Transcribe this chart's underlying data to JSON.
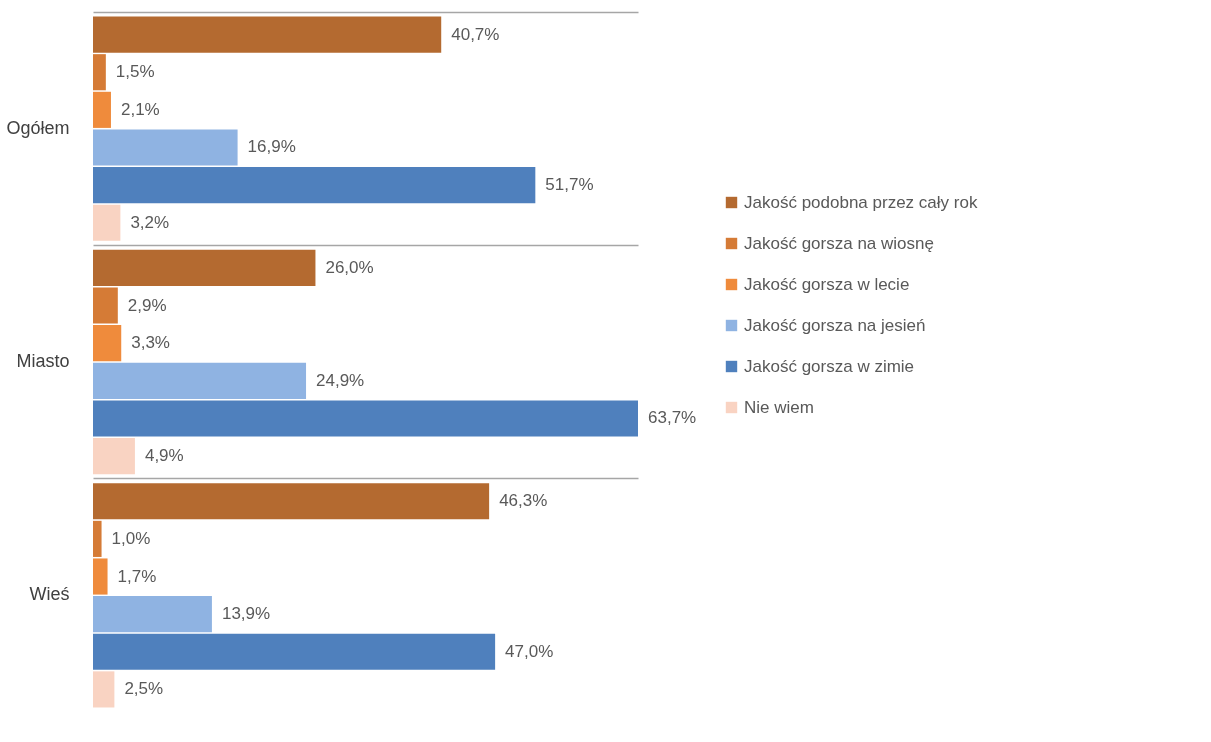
{
  "chart_data": {
    "type": "bar",
    "orientation": "horizontal",
    "categories": [
      "Ogółem",
      "Miasto",
      "Wieś"
    ],
    "grid": "y",
    "legend": "right",
    "series": [
      {
        "name": "Jakość podobna przez cały rok",
        "color": "#b46a30",
        "values": [
          40.7,
          26.0,
          46.3
        ],
        "value_labels": [
          "40,7%",
          "26,0%",
          "46,3%"
        ]
      },
      {
        "name": "Jakość gorsza na wiosnę",
        "color": "#d57b36",
        "values": [
          1.5,
          2.9,
          1.0
        ],
        "value_labels": [
          "1,5%",
          "2,9%",
          "1,0%"
        ]
      },
      {
        "name": "Jakość gorsza w lecie",
        "color": "#ef8b3c",
        "values": [
          2.1,
          3.3,
          1.7
        ],
        "value_labels": [
          "2,1%",
          "3,3%",
          "1,7%"
        ]
      },
      {
        "name": "Jakość gorsza na jesień",
        "color": "#8fb3e2",
        "values": [
          16.9,
          24.9,
          13.9
        ],
        "value_labels": [
          "16,9%",
          "24,9%",
          "13,9%"
        ]
      },
      {
        "name": "Jakość gorsza w zimie",
        "color": "#4f80bd",
        "values": [
          51.7,
          63.7,
          47.0
        ],
        "value_labels": [
          "51,7%",
          "63,7%",
          "47,0%"
        ]
      },
      {
        "name": "Nie wiem",
        "color": "#f9d3c2",
        "values": [
          3.2,
          4.9,
          2.5
        ],
        "value_labels": [
          "3,2%",
          "4,9%",
          "2,5%"
        ]
      }
    ]
  }
}
